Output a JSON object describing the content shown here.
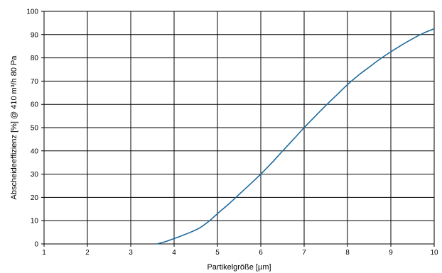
{
  "chart_data": {
    "type": "line",
    "xlabel": "Partikelgröße [µm]",
    "ylabel": "Abscheideeffizienz [%] @ 410 m³/h 80 Pa",
    "xlim": [
      1,
      10
    ],
    "ylim": [
      0,
      100
    ],
    "xticks": [
      1,
      2,
      3,
      4,
      5,
      6,
      7,
      8,
      9,
      10
    ],
    "yticks": [
      0,
      10,
      20,
      30,
      40,
      50,
      60,
      70,
      80,
      90,
      100
    ],
    "grid": true,
    "line_color": "#1f6a9e",
    "series": [
      {
        "x": [
          3.6,
          3.8,
          4.0,
          4.2,
          4.4,
          4.6,
          4.8,
          5.0,
          5.25,
          5.5,
          5.75,
          6.0,
          6.25,
          6.5,
          6.75,
          7.0,
          7.25,
          7.5,
          7.75,
          8.0,
          8.25,
          8.5,
          8.75,
          9.0,
          9.25,
          9.5,
          9.75,
          10.0
        ],
        "y": [
          0,
          1.0,
          2.3,
          3.7,
          5.2,
          7.0,
          9.7,
          13.0,
          17.0,
          21.3,
          25.6,
          30.0,
          34.8,
          39.9,
          44.9,
          50.0,
          54.8,
          59.5,
          64.0,
          68.5,
          72.5,
          76.0,
          79.5,
          82.6,
          85.5,
          88.2,
          90.6,
          92.5
        ]
      }
    ]
  }
}
